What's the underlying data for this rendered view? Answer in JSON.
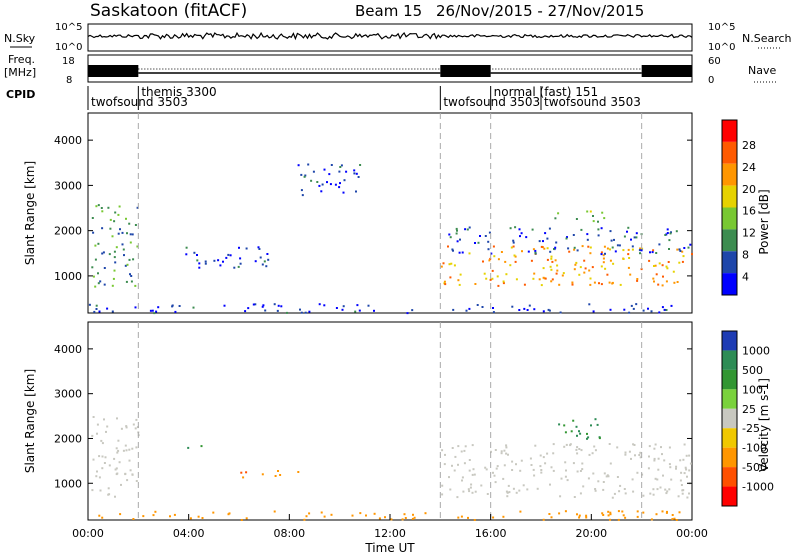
{
  "header": {
    "station": "Saskatoon (fitACF)",
    "beam": "Beam 15",
    "date_range": "26/Nov/2015 - 27/Nov/2015"
  },
  "top_panels": {
    "nsky_label": "N.Sky",
    "freq_label_1": "Freq.",
    "freq_label_2": "[MHz]",
    "cpid_label": "CPID",
    "left_ticks_noise": [
      "10^5",
      "10^0"
    ],
    "right_ticks_noise": [
      "10^5",
      "10^0"
    ],
    "left_ticks_freq": [
      "18",
      "8"
    ],
    "right_ticks_nave": [
      "60",
      "0"
    ],
    "nsearch_label": "N.Search",
    "nave_label": "Nave",
    "cpid_items": [
      {
        "label": "twofsound 3503",
        "start": 0,
        "end": 2,
        "row": 2
      },
      {
        "label": "themis 3300",
        "start": 2,
        "end": 14,
        "row": 1
      },
      {
        "label": "twofsound 3503",
        "start": 14,
        "end": 18,
        "row": 2
      },
      {
        "label": "normal (fast) 151",
        "start": 16,
        "end": 22,
        "row": 1
      },
      {
        "label": "twofsound 3503",
        "start": 18,
        "end": 24,
        "row": 2
      }
    ]
  },
  "power_panel": {
    "ylabel": "Slant Range [km]",
    "cbar_label": "Power [dB]",
    "cbar_ticks": [
      "28",
      "24",
      "20",
      "16",
      "12",
      "8",
      "4"
    ],
    "cbar_colors": [
      "#ff0000",
      "#ff5a00",
      "#ff9600",
      "#e6d200",
      "#78c832",
      "#3c8c50",
      "#1e46aa",
      "#0000ff"
    ]
  },
  "velocity_panel": {
    "ylabel": "Slant Range [km]",
    "cbar_label": "Velocity [m s-1]",
    "cbar_ticks": [
      "1000",
      "500",
      "100",
      "25",
      "-25",
      "-100",
      "-500",
      "-1000"
    ],
    "cbar_colors": [
      "#1e3cb4",
      "#2d8c55",
      "#329632",
      "#7ad23c",
      "#c8c8c0",
      "#f0c800",
      "#ff9600",
      "#ff5000",
      "#ff0000"
    ]
  },
  "xaxis": {
    "label": "Time UT",
    "ticks": [
      "00:00",
      "04:00",
      "08:00",
      "12:00",
      "16:00",
      "20:00",
      "00:00"
    ]
  },
  "chart_data": {
    "type": "heatmap",
    "title": "Saskatoon (fitACF) Beam 15 26/Nov/2015 - 27/Nov/2015",
    "xlabel": "Time UT",
    "ylabel": "Slant Range [km]",
    "xlim_hours": [
      0,
      24
    ],
    "ylim_km": [
      180,
      4600
    ],
    "yticks_km": [
      1000,
      2000,
      3000,
      4000
    ],
    "mode_change_hours": [
      2,
      14,
      16,
      22
    ],
    "power_regions": [
      {
        "t0": 0.1,
        "t1": 2.0,
        "r0": 700,
        "r1": 2600,
        "level_db": 12
      },
      {
        "t0": 3.8,
        "t1": 7.5,
        "r0": 1200,
        "r1": 1700,
        "level_db": 6
      },
      {
        "t0": 8.3,
        "t1": 10.8,
        "r0": 2700,
        "r1": 3500,
        "level_db": 6
      },
      {
        "t0": 14.0,
        "t1": 24.0,
        "r0": 800,
        "r1": 1700,
        "level_db": 24
      },
      {
        "t0": 14.3,
        "t1": 24.0,
        "r0": 1500,
        "r1": 2100,
        "level_db": 8
      },
      {
        "t0": 18.5,
        "t1": 20.5,
        "r0": 2200,
        "r1": 2500,
        "level_db": 16
      },
      {
        "t0": 0.0,
        "t1": 24.0,
        "r0": 200,
        "r1": 400,
        "level_db": 6
      }
    ],
    "velocity_regions": [
      {
        "t0": 0.1,
        "t1": 2.0,
        "r0": 700,
        "r1": 2600,
        "vel": 0
      },
      {
        "t0": 6.0,
        "t1": 9.0,
        "r0": 1150,
        "r1": 1300,
        "vel": -300
      },
      {
        "t0": 3.8,
        "t1": 5.2,
        "r0": 1800,
        "r1": 1900,
        "vel": 300
      },
      {
        "t0": 14.0,
        "t1": 24.0,
        "r0": 700,
        "r1": 1900,
        "vel": 0
      },
      {
        "t0": 18.5,
        "t1": 20.5,
        "r0": 2000,
        "r1": 2500,
        "vel": 300
      },
      {
        "t0": 0.0,
        "t1": 24.0,
        "r0": 200,
        "r1": 400,
        "vel": -100
      }
    ]
  }
}
